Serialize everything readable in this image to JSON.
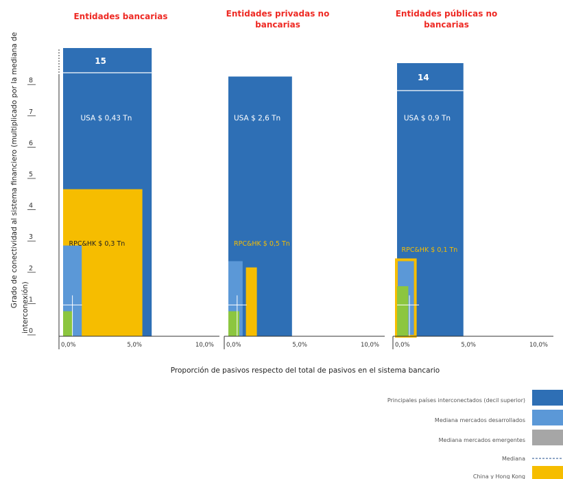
{
  "chart_data": {
    "type": "bar",
    "ylabel_lines": [
      "Grado de conectividad al sistema financiero (multiplicado por la mediana de",
      "interconexión)"
    ],
    "xlabel": "Proporción de pasivos respecto del total de pasivos en el sistema bancario",
    "y_ticks": [
      "0",
      "1",
      "2",
      "3",
      "4",
      "5",
      "6",
      "7",
      "8"
    ],
    "ylim": [
      0,
      8.5
    ],
    "x_ticks": [
      "0,0%",
      "5,0%",
      "10,0%"
    ],
    "x_tick_values": [
      0,
      5,
      10
    ],
    "xlim": [
      0,
      10
    ],
    "colors": {
      "top_decile": "#2e6fb5",
      "developed": "#5b98d7",
      "emerging": "#a6a6a6",
      "median_cross": "#ffffff",
      "china_hk": "#f6bd00",
      "green": "#8cc63f",
      "title": "#ee2a24"
    },
    "panels": [
      {
        "title": "Entidades bancarias",
        "top_decile": {
          "x": 7.6,
          "y": 15,
          "y_label": "15",
          "truncated": true
        },
        "china_hk": {
          "x": 6.8,
          "y": 4.7,
          "style": "fill"
        },
        "developed": {
          "x": 1.6,
          "y": 2.9
        },
        "green": {
          "x": 0.8,
          "y": 0.8
        },
        "median": {
          "x": 0.8,
          "y": 1.0
        },
        "annotations": [
          {
            "text": "USA $ 0,43 Tn",
            "x": 1.5,
            "y": 6.9,
            "style": "white"
          },
          {
            "text": "RPC&HK $ 0,3 Tn",
            "x": 0.5,
            "y": 2.9,
            "style": "dark"
          }
        ]
      },
      {
        "title_lines": [
          "Entidades privadas no",
          "bancarias"
        ],
        "top_decile": {
          "x": 5.8,
          "y": 8.3,
          "truncated": false
        },
        "china_hk": {
          "x0": 1.6,
          "x1": 2.6,
          "y": 2.2,
          "style": "fill"
        },
        "developed": {
          "x": 1.3,
          "y": 2.4
        },
        "green": {
          "x": 1.0,
          "y": 0.8
        },
        "median": {
          "x": 0.8,
          "y": 1.0
        },
        "annotations": [
          {
            "text": "USA $ 2,6 Tn",
            "x": 0.5,
            "y": 6.9,
            "style": "white"
          },
          {
            "text": "RPC&HK $ 0,5 Tn",
            "x": 0.5,
            "y": 2.9,
            "style": "yellow"
          }
        ]
      },
      {
        "title_lines": [
          "Entidades públicas no",
          "bancarias"
        ],
        "top_decile": {
          "x": 5.9,
          "y": 14,
          "y_label": "14",
          "truncated": true
        },
        "china_hk": {
          "x": 1.5,
          "y": 2.4,
          "style": "outline"
        },
        "developed": {
          "x": 1.5,
          "y": 2.4
        },
        "green": {
          "x": 1.0,
          "y": 1.6
        },
        "median": {
          "x": 1.1,
          "y": 1.0
        },
        "annotations": [
          {
            "text": "USA $ 0,9 Tn",
            "x": 0.6,
            "y": 6.9,
            "style": "white"
          },
          {
            "text": "RPC&HK $ 0,1 Tn",
            "x": 0.4,
            "y": 2.7,
            "style": "yellow"
          }
        ]
      }
    ],
    "legend": [
      {
        "label": "Principales países interconectados (decil superior)",
        "color": "#2e6fb5",
        "kind": "box"
      },
      {
        "label": "Mediana mercados desarrollados",
        "color": "#5b98d7",
        "kind": "box"
      },
      {
        "label": "Mediana mercados emergentes",
        "color": "#a6a6a6",
        "kind": "box"
      },
      {
        "label": "Mediana",
        "color": "#1f4e8c",
        "kind": "dash"
      },
      {
        "label": "China y Hong Kong",
        "color": "#f6bd00",
        "kind": "box"
      }
    ]
  }
}
